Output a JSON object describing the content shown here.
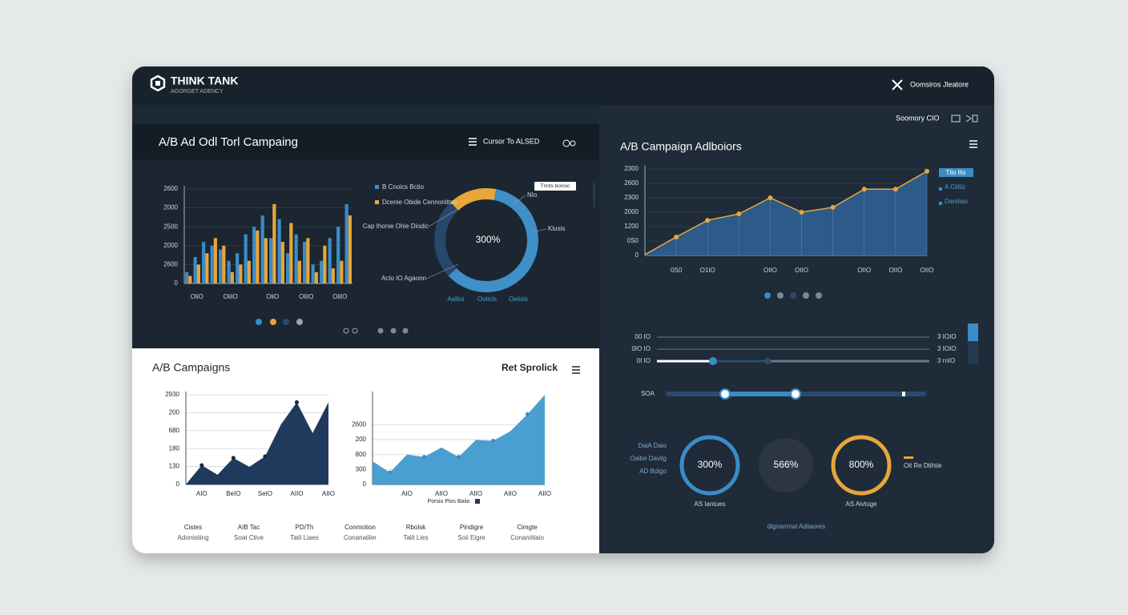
{
  "header": {
    "brand": "THINK TANK",
    "tagline": "AGORGET ADENCY",
    "action": "Oomsiros Jleatore",
    "subnav": "Soomory CIO"
  },
  "top_left": {
    "title": "A/B Ad Odl Torl Campaing",
    "filter": "Cursor To ALSED",
    "bar_chart": {
      "type": "bar",
      "categories": [
        null,
        "OliO",
        null,
        null,
        null,
        "OliIO",
        null,
        null,
        null,
        null,
        "OliO",
        null,
        null,
        null,
        "OliIO",
        null,
        null,
        null,
        "OliIO",
        null
      ],
      "series": [
        {
          "color": "#3a8cc8",
          "values": [
            300,
            700,
            1100,
            1000,
            900,
            600,
            800,
            1300,
            1500,
            1800,
            1200,
            1700,
            800,
            1300,
            1100,
            500,
            600,
            1200,
            1500,
            2100
          ]
        },
        {
          "color": "#e7a63a",
          "values": [
            200,
            500,
            800,
            1200,
            1000,
            300,
            500,
            600,
            1400,
            1200,
            2100,
            1100,
            1600,
            600,
            1200,
            300,
            1000,
            400,
            600,
            1800
          ]
        }
      ],
      "ylim": [
        0,
        2500
      ],
      "yticks": [
        0,
        {
          "value": 500,
          "label": "2600"
        },
        {
          "value": 1000,
          "label": "2000"
        },
        {
          "value": 1500,
          "label": "2500"
        },
        2000,
        {
          "value": 2500,
          "label": "2600"
        }
      ]
    },
    "donut": {
      "type": "pie",
      "center_label": "300%",
      "values": [
        60,
        25,
        15
      ],
      "colors": [
        "#3f8fc9",
        "#27476b",
        "#e7a63a"
      ],
      "legend": [
        {
          "name": "B Cnoics Bctio",
          "color": "#3a8cc8"
        },
        {
          "name": "Dcenie Obide Cennonittos",
          "color": "#e7a63a"
        }
      ],
      "annotations": [
        "Cap Ihonie Ohie Diodic",
        "AcIo IO Agaonn",
        "NIo",
        "Klusis"
      ],
      "tooltip": "Tnnts bonsic",
      "bottom_labels": [
        "Aaliioi",
        "Ooiicls",
        "Oeiisis"
      ]
    }
  },
  "top_right": {
    "title": "A/B Campaign Adlboiors",
    "line_chart": {
      "type": "line",
      "color": "#e7a63a",
      "area_color": "#2d5f92",
      "categories": [
        null,
        "0S0",
        "O1IO",
        null,
        "OIIO",
        "OIIO",
        null,
        "OIIO",
        "OIIO",
        "OIIO"
      ],
      "values": [
        30,
        640,
        1220,
        1440,
        2000,
        1500,
        1670,
        2300,
        2300,
        2920
      ],
      "ylim": [
        0,
        3000
      ],
      "yticks": [
        0,
        {
          "value": 500,
          "label": "0S0"
        },
        {
          "value": 1000,
          "label": "1200"
        },
        {
          "value": 1500,
          "label": "2000"
        },
        {
          "value": 2000,
          "label": "2300"
        },
        {
          "value": 2500,
          "label": "2600"
        },
        {
          "value": 3000,
          "label": "2300"
        }
      ]
    },
    "legend": [
      "Tlio Ilis",
      "A Cliltiz",
      "Daniiiao"
    ]
  },
  "sliders": {
    "rows": [
      {
        "left": "00 IO",
        "right": "3 IOIO"
      },
      {
        "left": "0IO IO",
        "right": "3 IOIO"
      },
      {
        "left": "0I IO",
        "right": "3 rnIO"
      }
    ],
    "range_label": "SOA"
  },
  "rings": {
    "left_labels": [
      "DaiA Daio",
      "Oaibe Davilg",
      "AD Bdigo"
    ],
    "items": [
      {
        "label": "300%",
        "caption": "AS Iantues"
      },
      {
        "label": "566%"
      },
      {
        "label": "800%",
        "caption": "AS Aivtuge"
      }
    ],
    "right_label": "Oit Re Dtihtie",
    "footer": "dignarnnal Adiiaores"
  },
  "bottom_left": {
    "title": "A/B Campaigns",
    "action": "Ret Sprolick",
    "area_a": {
      "type": "area",
      "color": "#1f3a5c",
      "categories": [
        null,
        "AIO",
        null,
        "BeIO",
        null,
        "SeIO",
        null,
        "AIIO",
        null,
        "AIIO"
      ],
      "values": [
        0,
        535,
        270,
        740,
        490,
        780,
        1670,
        2290,
        1430,
        2290
      ],
      "ylim": [
        0,
        2500
      ],
      "yticks": [
        0,
        {
          "value": 500,
          "label": "130"
        },
        {
          "value": 1000,
          "label": "180"
        },
        {
          "value": 1500,
          "label": "680"
        },
        {
          "value": 2000,
          "label": "200"
        },
        {
          "value": 2500,
          "label": "2930"
        }
      ]
    },
    "area_b": {
      "type": "area",
      "color": "#4a9fd0",
      "categories": [
        null,
        null,
        "AIO",
        null,
        "AIIO",
        null,
        "AIIO",
        null,
        "AIIO",
        null,
        "AIIO"
      ],
      "values": [
        780,
        400,
        1000,
        920,
        1240,
        920,
        1490,
        1460,
        1780,
        2350,
        3000
      ],
      "ylim": [
        0,
        3000
      ],
      "yticks": [
        0,
        {
          "value": 500,
          "label": "300"
        },
        {
          "value": 1000,
          "label": "800"
        },
        {
          "value": 1500,
          "label": "200"
        },
        {
          "value": 2000,
          "label": "2600"
        }
      ],
      "legend": "Porsio Pios Baiio"
    },
    "footer": [
      [
        "Cistes",
        "Adonistiing"
      ],
      [
        "AIB Tac",
        "Soat Ctive"
      ],
      [
        "PD/Th",
        "Tatil Liaes"
      ],
      [
        "Conmotion",
        "Conanatiler"
      ],
      [
        "Rbolsk",
        "Talit Lies"
      ],
      [
        "Pindigre",
        "Soii Eigre"
      ],
      [
        "Cimgte",
        "Conaniitiaio"
      ]
    ]
  }
}
